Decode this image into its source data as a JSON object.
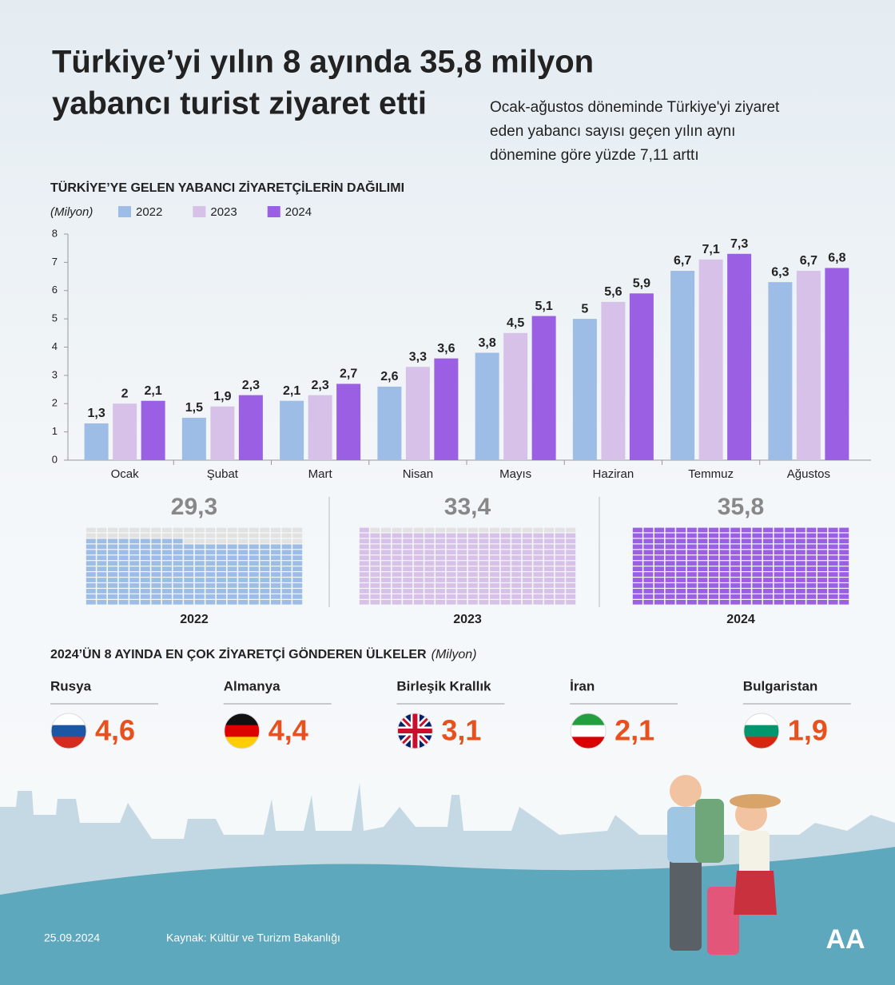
{
  "header": {
    "title_lines": [
      "Türkiye’yi yılın 8 ayında 35,8 milyon",
      "yabancı turist ziyaret etti"
    ],
    "subtitle_lines": [
      "Ocak-ağustos döneminde Türkiye'yi ziyaret",
      "eden yabancı sayısı geçen yılın aynı",
      "dönemine göre yüzde 7,11 arttı"
    ]
  },
  "chart_data": {
    "type": "bar",
    "title": "TÜRKİYE’YE GELEN YABANCI ZİYARETÇİLERİN DAĞILIMI",
    "unit": "(Milyon)",
    "categories": [
      "Ocak",
      "Şubat",
      "Mart",
      "Nisan",
      "Mayıs",
      "Haziran",
      "Temmuz",
      "Ağustos"
    ],
    "series": [
      {
        "name": "2022",
        "color": "#9dbde6",
        "values": [
          1.3,
          1.5,
          2.1,
          2.6,
          3.8,
          5,
          6.7,
          6.3
        ],
        "value_labels": [
          "1,3",
          "1,5",
          "2,1",
          "2,6",
          "3,8",
          "5",
          "6,7",
          "6,3"
        ]
      },
      {
        "name": "2023",
        "color": "#d8c1e8",
        "values": [
          2,
          1.9,
          2.3,
          3.3,
          4.5,
          5.6,
          7.1,
          6.7
        ],
        "value_labels": [
          "2",
          "1,9",
          "2,3",
          "3,3",
          "4,5",
          "5,6",
          "7,1",
          "6,7"
        ]
      },
      {
        "name": "2024",
        "color": "#9b5fe3",
        "values": [
          2.1,
          2.3,
          2.7,
          3.6,
          5.1,
          5.9,
          7.3,
          6.8
        ],
        "value_labels": [
          "2,1",
          "2,3",
          "2,7",
          "3,6",
          "5,1",
          "5,9",
          "7,3",
          "6,8"
        ]
      }
    ],
    "ylim": [
      0,
      8
    ],
    "yticks": [
      0,
      1,
      2,
      3,
      4,
      5,
      6,
      7,
      8
    ],
    "legend": "top-left"
  },
  "totals": [
    {
      "year": "2022",
      "value": 29.3,
      "value_label": "29,3"
    },
    {
      "year": "2023",
      "value": 33.4,
      "value_label": "33,4"
    },
    {
      "year": "2024",
      "value": 35.8,
      "value_label": "35,8"
    }
  ],
  "countries": {
    "title": "2024’ÜN 8 AYINDA EN ÇOK ZİYARETÇİ GÖNDEREN ÜLKELER",
    "unit": "(Milyon)",
    "items": [
      {
        "name": "Rusya",
        "value": 4.6,
        "value_label": "4,6"
      },
      {
        "name": "Almanya",
        "value": 4.4,
        "value_label": "4,4"
      },
      {
        "name": "Birleşik Krallık",
        "value": 3.1,
        "value_label": "3,1"
      },
      {
        "name": "İran",
        "value": 2.1,
        "value_label": "2,1"
      },
      {
        "name": "Bulgaristan",
        "value": 1.9,
        "value_label": "1,9"
      }
    ]
  },
  "footer": {
    "date": "25.09.2024",
    "source": "Kaynak: Kültür ve Turizm Bakanlığı",
    "logo": "AA"
  }
}
